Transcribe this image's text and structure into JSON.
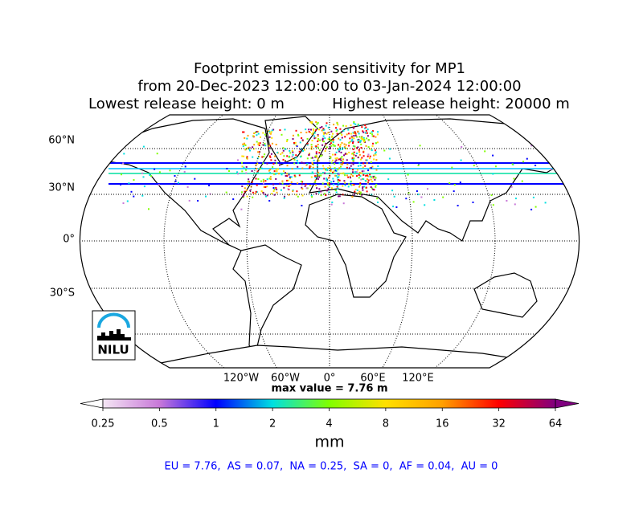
{
  "title": [
    "Footprint emission sensitivity for MP1",
    "from 20-Dec-2023 12:00:00 to 03-Jan-2024 12:00:00",
    "Lowest release height: 0 m",
    "Highest release height: 20000 m"
  ],
  "map": {
    "lat_labels": [
      "60°N",
      "30°N",
      "0°",
      "30°S"
    ],
    "lon_labels": [
      "120°W",
      "60°W",
      "0°",
      "60°E",
      "120°E"
    ],
    "max_value_label": "max value = 7.76 m"
  },
  "colorbar": {
    "scale": "log",
    "lim": [
      0.25,
      64
    ],
    "ticks": [
      0.25,
      0.5,
      1,
      2,
      4,
      8,
      16,
      32,
      64
    ],
    "colors": [
      "#f4e6f4",
      "#c878d8",
      "#0000ff",
      "#00e0e0",
      "#80ff00",
      "#ffe000",
      "#ffa000",
      "#ff0000",
      "#800080"
    ],
    "label": "mm"
  },
  "summary": "EU = 7.76,  AS = 0.07,  NA = 0.25,  SA = 0,  AF = 0.04,  AU = 0",
  "logo": "NILU"
}
